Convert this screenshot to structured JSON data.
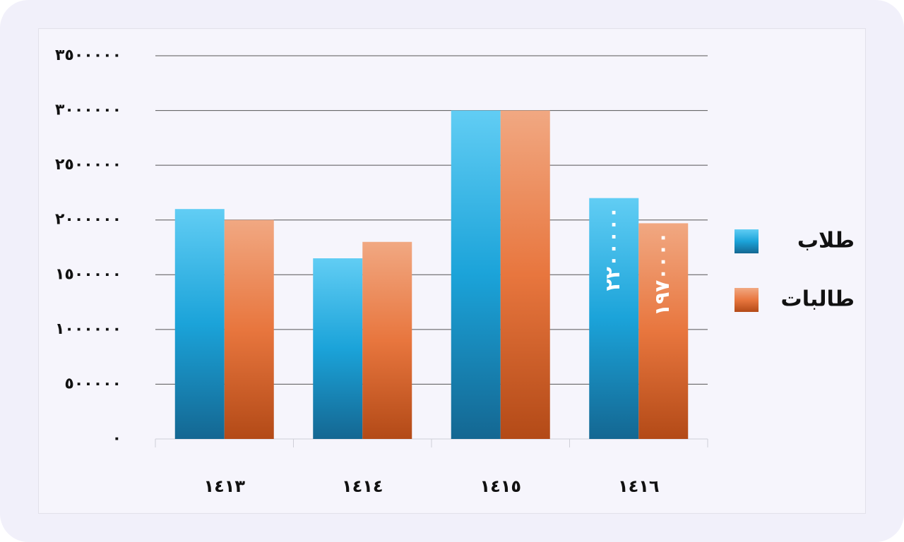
{
  "chart_data": {
    "type": "bar",
    "categories": [
      "١٤١٣",
      "١٤١٤",
      "١٤١٥",
      "١٤١٦"
    ],
    "series": [
      {
        "name": "طلاب",
        "color": "#1ba3d9",
        "values": [
          2100000,
          1650000,
          3000000,
          2200000
        ],
        "value_labels": [
          null,
          null,
          null,
          "٢٢٠٠٠٠٠"
        ]
      },
      {
        "name": "طالبات",
        "color": "#e8763e",
        "values": [
          2000000,
          1800000,
          3000000,
          1970000
        ],
        "value_labels": [
          null,
          null,
          null,
          "١٩٧٠٠٠٠"
        ]
      }
    ],
    "ylim": [
      0,
      3500000
    ],
    "yticks": [
      {
        "value": 0,
        "label": "٠"
      },
      {
        "value": 500000,
        "label": "٥٠٠٠٠٠"
      },
      {
        "value": 1000000,
        "label": "١٠٠٠٠٠٠"
      },
      {
        "value": 1500000,
        "label": "١٥٠٠٠٠٠"
      },
      {
        "value": 2000000,
        "label": "٢٠٠٠٠٠٠"
      },
      {
        "value": 2500000,
        "label": "٢٥٠٠٠٠٠"
      },
      {
        "value": 3000000,
        "label": "٣٠٠٠٠٠٠"
      },
      {
        "value": 3500000,
        "label": "٣٥٠٠٠٠٠"
      }
    ],
    "grid": true,
    "legend": "right"
  }
}
